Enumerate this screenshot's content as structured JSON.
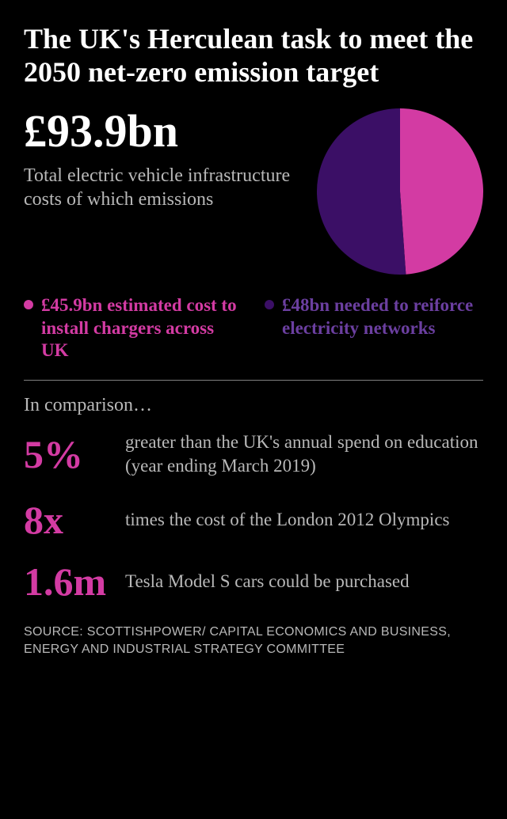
{
  "colors": {
    "bg": "#000000",
    "text": "#ffffff",
    "text_muted": "#b8b8b8",
    "accent_pink": "#d33ba3",
    "accent_purple": "#3b0f66"
  },
  "title": {
    "text": "The UK's Herculean task to meet the 2050 net-zero emission target",
    "fontsize": 36
  },
  "headline": {
    "value": "£93.9bn",
    "fontsize": 58,
    "sub": "Total electric vehicle infrastructure costs of which emissions",
    "sub_fontsize": 24
  },
  "pie": {
    "type": "pie",
    "diameter": 210,
    "slices": [
      {
        "label": "chargers",
        "value": 45.9,
        "color": "#d33ba3"
      },
      {
        "label": "networks",
        "value": 48.0,
        "color": "#3b0f66"
      }
    ],
    "start_angle_deg": -90,
    "background": "#000000"
  },
  "legend": [
    {
      "color": "#d33ba3",
      "text": "£45.9bn estimated cost to install chargers across UK",
      "text_color": "#d33ba3"
    },
    {
      "color": "#3b0f66",
      "text": "£48bn needed to reiforce electricity networks",
      "text_color": "#6b3fa0"
    }
  ],
  "legend_fontsize": 23,
  "comparison": {
    "heading": "In comparison…",
    "heading_fontsize": 24,
    "value_fontsize": 50,
    "text_fontsize": 23,
    "value_color": "#d33ba3",
    "items": [
      {
        "value": "5%",
        "text": "greater than the UK's annual spend on education (year ending March 2019)"
      },
      {
        "value": "8x",
        "text": "times the cost of the London 2012 Olympics"
      },
      {
        "value": "1.6m",
        "text": "Tesla Model S cars could be purchased"
      }
    ]
  },
  "source": {
    "text": "SOURCE:  SCOTTISHPOWER/ CAPITAL ECONOMICS AND BUSINESS, ENERGY AND INDUSTRIAL STRATEGY COMMITTEE",
    "fontsize": 16
  }
}
